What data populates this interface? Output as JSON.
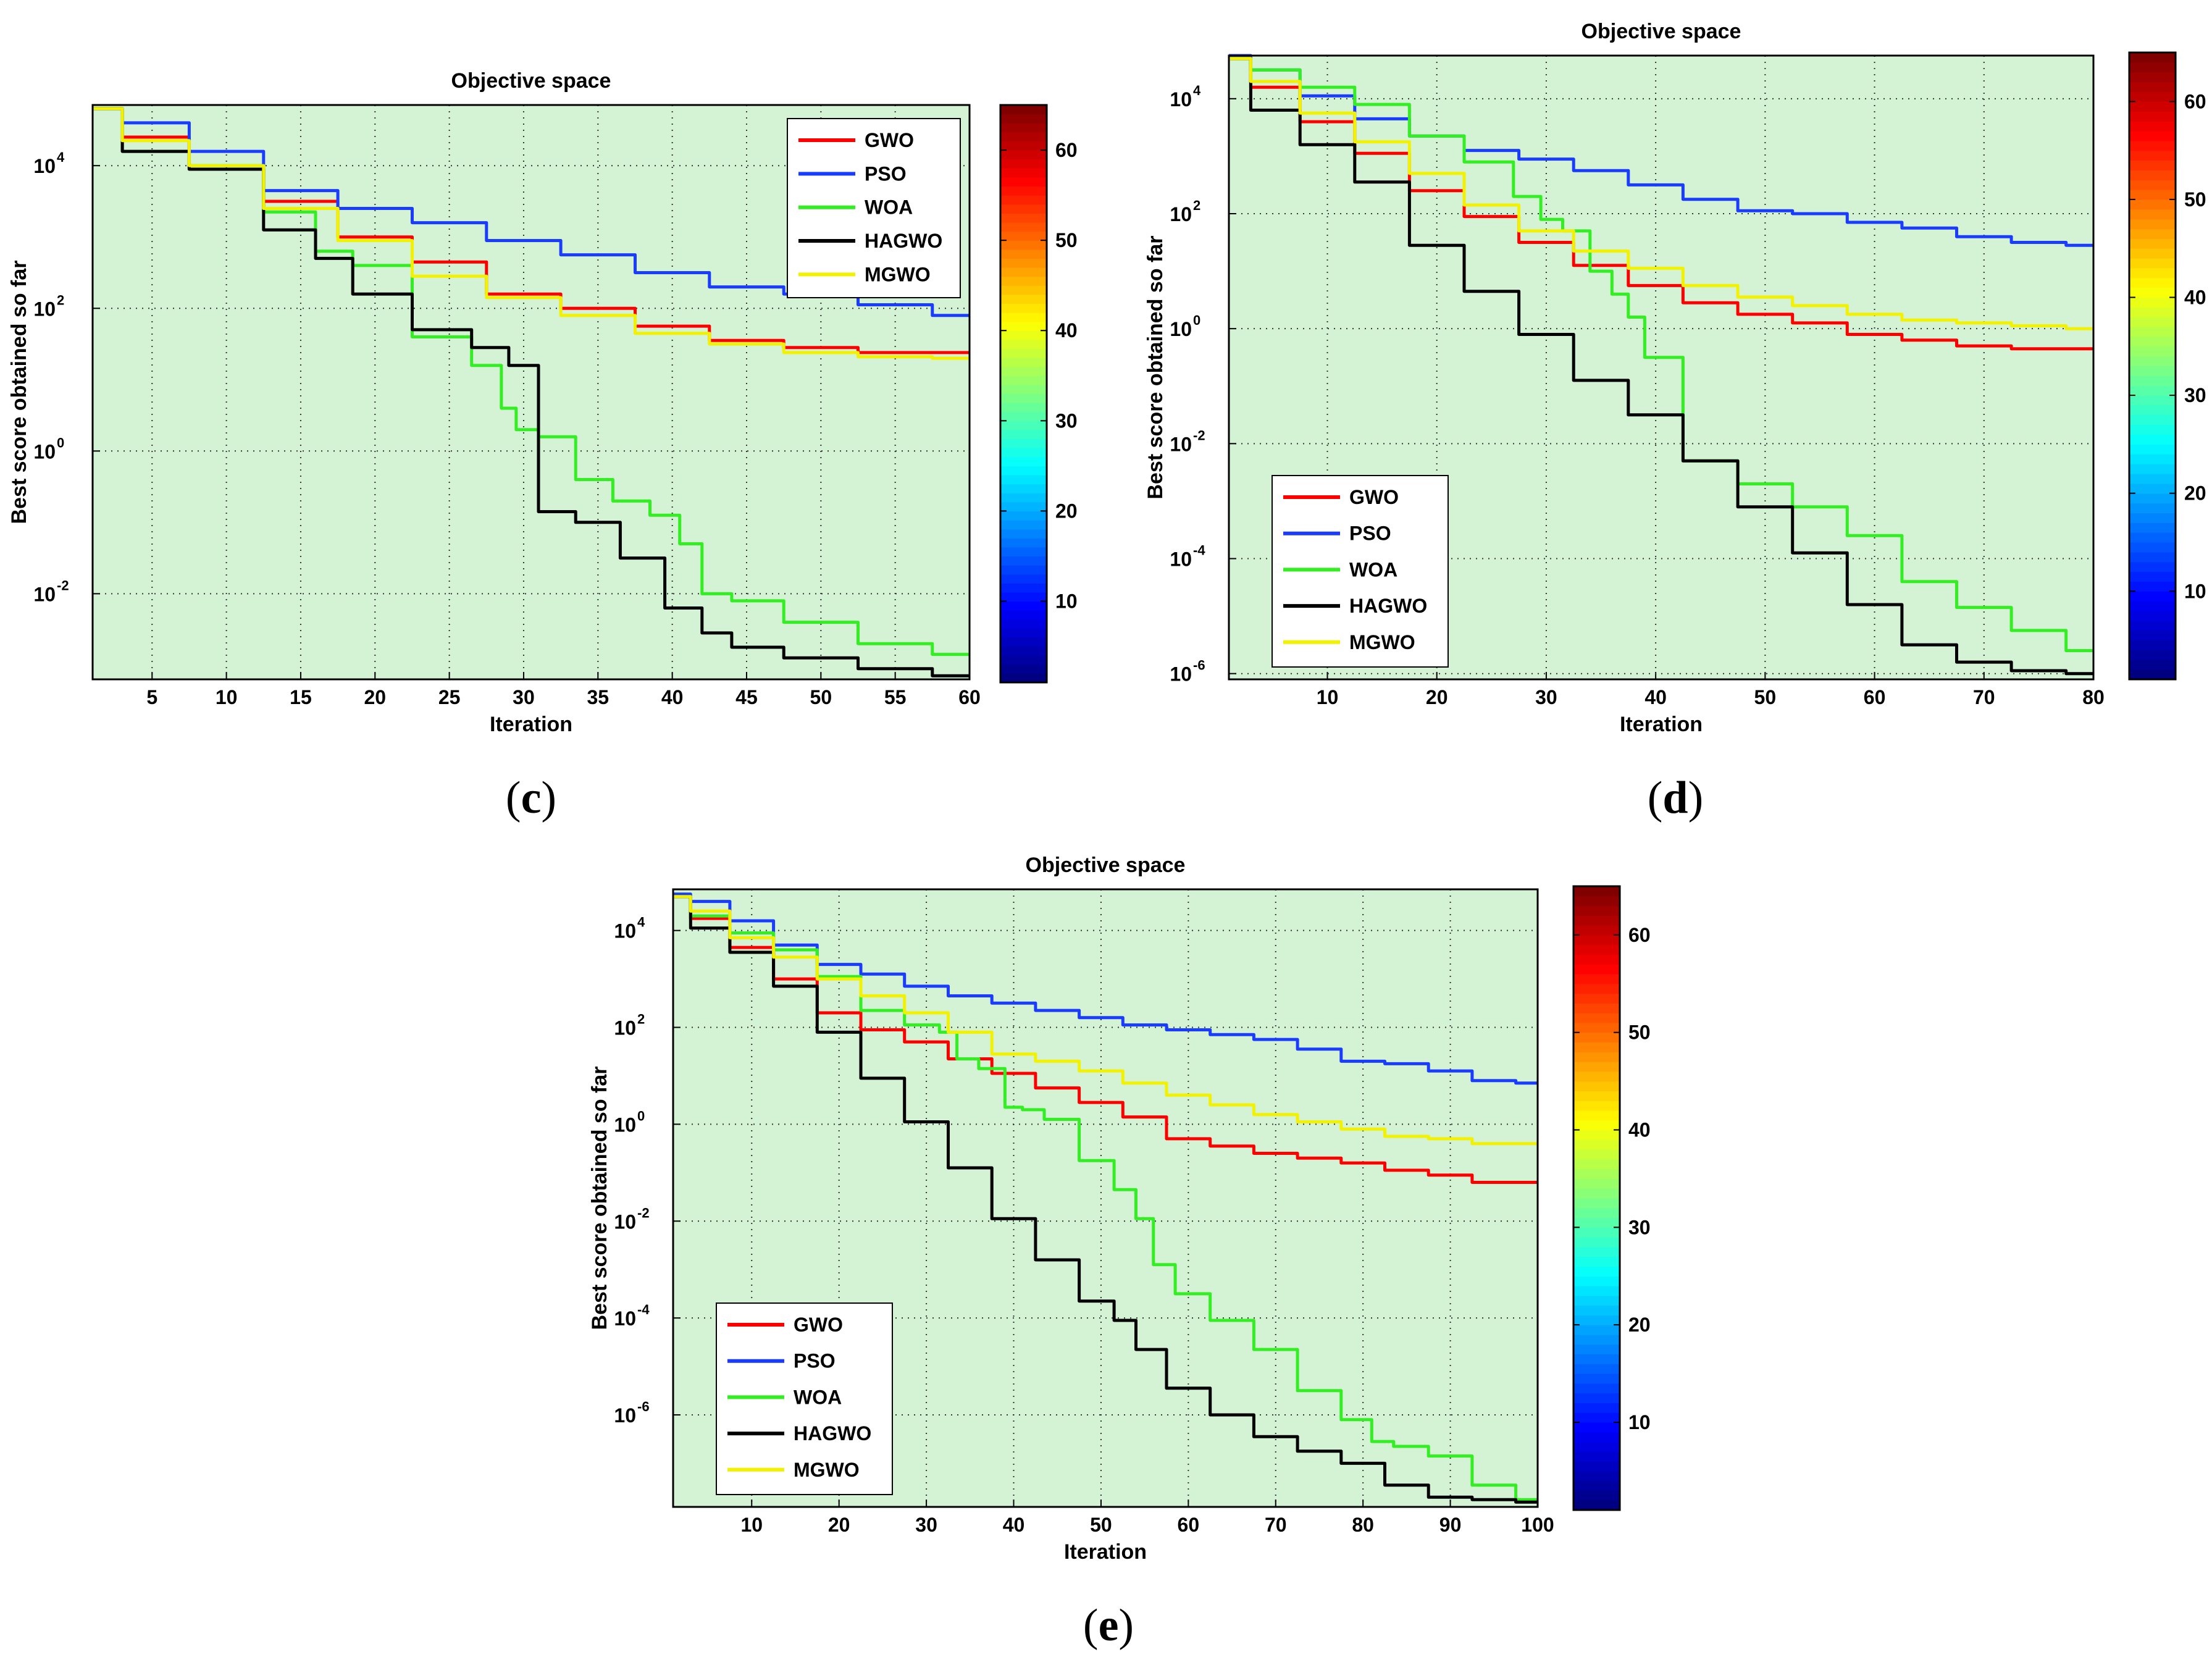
{
  "colors": {
    "plot_bg": "#d4f3d4",
    "GWO": "#ff0000",
    "PSO": "#1a3cff",
    "WOA": "#33ee22",
    "HAGWO": "#000000",
    "MGWO": "#f2f200"
  },
  "legend": [
    "GWO",
    "PSO",
    "WOA",
    "HAGWO",
    "MGWO"
  ],
  "colorbar": {
    "min": 1,
    "max": 65,
    "ticks": [
      10,
      20,
      30,
      40,
      50,
      60
    ]
  },
  "chart_data": [
    {
      "id": "c",
      "caption_letter": "c",
      "type": "line",
      "title": "Objective space",
      "xlabel": "Iteration",
      "ylabel": "Best score obtained so far",
      "xlim": [
        1,
        60
      ],
      "xticks": [
        5,
        10,
        15,
        20,
        25,
        30,
        35,
        40,
        45,
        50,
        55,
        60
      ],
      "ylog_range": [
        -3.2,
        4.85
      ],
      "ylog_ticks": [
        4,
        2,
        0,
        -2
      ],
      "legend_position": "top-right",
      "grid": true,
      "series": [
        {
          "name": "GWO",
          "x": [
            1,
            5,
            10,
            15,
            20,
            25,
            30,
            35,
            40,
            45,
            50,
            55,
            60
          ],
          "log10_y": [
            4.8,
            4.4,
            3.95,
            3.5,
            3.0,
            2.65,
            2.2,
            2.0,
            1.75,
            1.55,
            1.45,
            1.38,
            1.38
          ]
        },
        {
          "name": "PSO",
          "x": [
            1,
            5,
            10,
            15,
            20,
            25,
            30,
            35,
            40,
            45,
            50,
            55,
            60
          ],
          "log10_y": [
            4.8,
            4.6,
            4.2,
            3.65,
            3.4,
            3.2,
            2.95,
            2.75,
            2.5,
            2.3,
            2.2,
            2.05,
            1.9
          ]
        },
        {
          "name": "WOA",
          "x": [
            1,
            5,
            10,
            15,
            17,
            20,
            25,
            28,
            29,
            30,
            32,
            35,
            37,
            40,
            41,
            43,
            45,
            50,
            55,
            60
          ],
          "log10_y": [
            4.8,
            4.2,
            4.0,
            3.35,
            2.8,
            2.6,
            1.6,
            1.2,
            0.6,
            0.3,
            0.2,
            -0.4,
            -0.7,
            -0.9,
            -1.3,
            -2.0,
            -2.1,
            -2.4,
            -2.7,
            -2.85
          ]
        },
        {
          "name": "HAGWO",
          "x": [
            1,
            5,
            10,
            15,
            17,
            20,
            25,
            28,
            30,
            32,
            35,
            38,
            41,
            43,
            45,
            50,
            55,
            60
          ],
          "log10_y": [
            4.8,
            4.2,
            3.95,
            3.1,
            2.7,
            2.2,
            1.7,
            1.45,
            1.2,
            -0.85,
            -1.0,
            -1.5,
            -2.2,
            -2.55,
            -2.75,
            -2.9,
            -3.05,
            -3.15
          ]
        },
        {
          "name": "MGWO",
          "x": [
            1,
            5,
            10,
            15,
            20,
            25,
            30,
            35,
            40,
            45,
            50,
            55,
            60
          ],
          "log10_y": [
            4.8,
            4.35,
            4.0,
            3.4,
            2.95,
            2.45,
            2.15,
            1.9,
            1.65,
            1.5,
            1.38,
            1.32,
            1.3
          ]
        }
      ]
    },
    {
      "id": "d",
      "caption_letter": "d",
      "type": "line",
      "title": "Objective space",
      "xlabel": "Iteration",
      "ylabel": "Best score obtained so far",
      "xlim": [
        1,
        80
      ],
      "xticks": [
        10,
        20,
        30,
        40,
        50,
        60,
        70,
        80
      ],
      "ylog_range": [
        -6.1,
        4.75
      ],
      "ylog_ticks": [
        4,
        2,
        0,
        -2,
        -4,
        -6
      ],
      "legend_position": "bottom-left",
      "grid": true,
      "series": [
        {
          "name": "GWO",
          "x": [
            1,
            5,
            10,
            15,
            20,
            25,
            30,
            35,
            40,
            45,
            50,
            55,
            60,
            65,
            70,
            75,
            80
          ],
          "log10_y": [
            4.7,
            4.2,
            3.6,
            3.05,
            2.4,
            1.95,
            1.5,
            1.1,
            0.75,
            0.45,
            0.25,
            0.1,
            -0.1,
            -0.2,
            -0.3,
            -0.35,
            -0.35
          ]
        },
        {
          "name": "PSO",
          "x": [
            1,
            5,
            10,
            15,
            20,
            25,
            30,
            35,
            40,
            45,
            50,
            55,
            60,
            65,
            70,
            75,
            80
          ],
          "log10_y": [
            4.75,
            4.5,
            4.05,
            3.65,
            3.35,
            3.1,
            2.95,
            2.75,
            2.5,
            2.25,
            2.05,
            2.0,
            1.85,
            1.75,
            1.6,
            1.5,
            1.45
          ]
        },
        {
          "name": "WOA",
          "x": [
            1,
            5,
            10,
            15,
            20,
            25,
            29,
            30,
            33,
            35,
            37,
            38,
            40,
            45,
            50,
            55,
            60,
            65,
            70,
            75,
            80
          ],
          "log10_y": [
            4.7,
            4.5,
            4.2,
            3.9,
            3.35,
            2.9,
            2.3,
            1.9,
            1.7,
            1.0,
            0.6,
            0.2,
            -0.5,
            -2.3,
            -2.7,
            -3.1,
            -3.6,
            -4.4,
            -4.85,
            -5.25,
            -5.6
          ]
        },
        {
          "name": "HAGWO",
          "x": [
            1,
            5,
            10,
            15,
            20,
            25,
            30,
            35,
            40,
            45,
            50,
            55,
            60,
            65,
            70,
            75,
            80
          ],
          "log10_y": [
            4.7,
            3.8,
            3.2,
            2.55,
            1.45,
            0.65,
            -0.1,
            -0.9,
            -1.5,
            -2.3,
            -3.1,
            -3.9,
            -4.8,
            -5.5,
            -5.8,
            -5.95,
            -6.0
          ]
        },
        {
          "name": "MGWO",
          "x": [
            1,
            5,
            10,
            15,
            20,
            25,
            30,
            35,
            40,
            45,
            50,
            55,
            60,
            65,
            70,
            75,
            80
          ],
          "log10_y": [
            4.7,
            4.3,
            3.75,
            3.25,
            2.7,
            2.15,
            1.7,
            1.35,
            1.05,
            0.75,
            0.55,
            0.4,
            0.25,
            0.15,
            0.1,
            0.05,
            0.0
          ]
        }
      ]
    },
    {
      "id": "e",
      "caption_letter": "e",
      "type": "line",
      "title": "Objective space",
      "xlabel": "Iteration",
      "ylabel": "Best score obtained so far",
      "xlim": [
        1,
        100
      ],
      "xticks": [
        10,
        20,
        30,
        40,
        50,
        60,
        70,
        80,
        90,
        100
      ],
      "ylog_range": [
        -7.9,
        4.85
      ],
      "ylog_ticks": [
        4,
        2,
        0,
        -2,
        -4,
        -6
      ],
      "legend_position": "bottom-left",
      "grid": true,
      "series": [
        {
          "name": "GWO",
          "x": [
            1,
            5,
            10,
            15,
            20,
            25,
            30,
            35,
            40,
            45,
            50,
            55,
            60,
            65,
            70,
            75,
            80,
            85,
            90,
            95,
            100
          ],
          "log10_y": [
            4.7,
            4.25,
            3.65,
            3.0,
            2.3,
            1.95,
            1.7,
            1.35,
            1.05,
            0.75,
            0.45,
            0.15,
            -0.3,
            -0.45,
            -0.6,
            -0.7,
            -0.8,
            -0.95,
            -1.05,
            -1.2,
            -1.2
          ]
        },
        {
          "name": "PSO",
          "x": [
            1,
            5,
            10,
            15,
            20,
            25,
            30,
            35,
            40,
            45,
            50,
            55,
            60,
            65,
            70,
            75,
            80,
            85,
            90,
            95,
            100
          ],
          "log10_y": [
            4.75,
            4.6,
            4.2,
            3.7,
            3.3,
            3.1,
            2.85,
            2.65,
            2.5,
            2.35,
            2.2,
            2.05,
            1.95,
            1.85,
            1.75,
            1.55,
            1.3,
            1.25,
            1.1,
            0.9,
            0.85
          ]
        },
        {
          "name": "WOA",
          "x": [
            1,
            5,
            10,
            15,
            20,
            25,
            30,
            33,
            34,
            38,
            40,
            42,
            45,
            50,
            53,
            55,
            57,
            60,
            65,
            70,
            75,
            80,
            82,
            85,
            90,
            95,
            100
          ],
          "log10_y": [
            4.7,
            4.3,
            3.95,
            3.6,
            3.05,
            2.35,
            2.05,
            1.9,
            1.35,
            1.15,
            0.35,
            0.3,
            0.1,
            -0.75,
            -1.35,
            -1.95,
            -2.9,
            -3.5,
            -4.05,
            -4.65,
            -5.5,
            -6.1,
            -6.55,
            -6.65,
            -6.85,
            -7.45,
            -7.75
          ]
        },
        {
          "name": "HAGWO",
          "x": [
            1,
            5,
            10,
            15,
            20,
            25,
            30,
            35,
            40,
            45,
            50,
            53,
            55,
            60,
            65,
            70,
            75,
            80,
            85,
            90,
            95,
            100
          ],
          "log10_y": [
            4.7,
            4.05,
            3.55,
            2.85,
            1.9,
            0.95,
            0.05,
            -0.9,
            -1.95,
            -2.8,
            -3.65,
            -4.05,
            -4.65,
            -5.45,
            -6.0,
            -6.45,
            -6.75,
            -7.0,
            -7.45,
            -7.7,
            -7.75,
            -7.8
          ]
        },
        {
          "name": "MGWO",
          "x": [
            1,
            5,
            10,
            15,
            20,
            25,
            30,
            35,
            40,
            45,
            50,
            55,
            60,
            65,
            70,
            75,
            80,
            85,
            90,
            95,
            100
          ],
          "log10_y": [
            4.7,
            4.4,
            3.85,
            3.45,
            3.0,
            2.65,
            2.3,
            1.9,
            1.45,
            1.3,
            1.1,
            0.85,
            0.6,
            0.4,
            0.2,
            0.05,
            -0.1,
            -0.25,
            -0.3,
            -0.4,
            -0.4
          ]
        }
      ]
    }
  ]
}
